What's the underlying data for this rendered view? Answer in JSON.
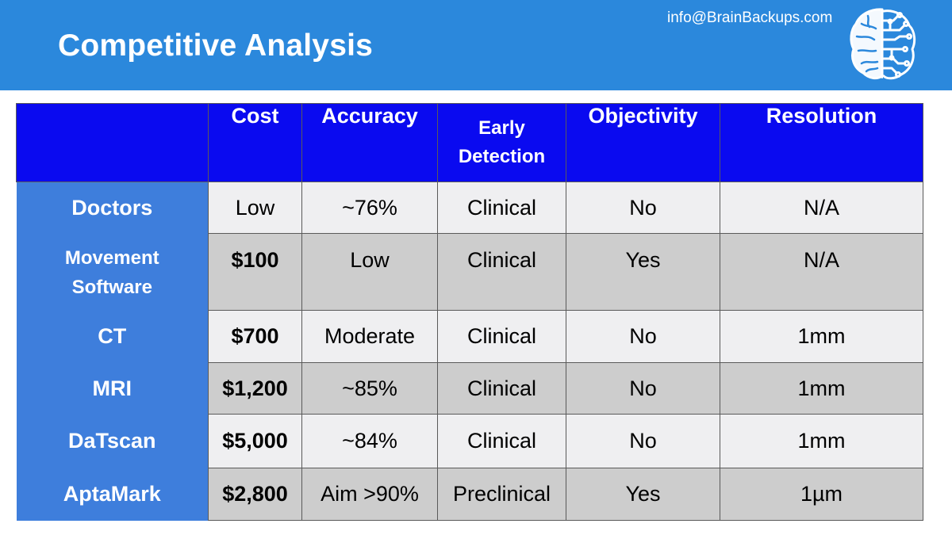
{
  "header": {
    "title": "Competitive Analysis",
    "email": "info@BrainBackups.com",
    "logo_icon": "brain-circuit-icon"
  },
  "table": {
    "columns": [
      "",
      "Cost",
      "Accuracy",
      "Early\nDetection",
      "Objectivity",
      "Resolution"
    ],
    "rows": [
      {
        "name": "Doctors",
        "cells": [
          "Low",
          "~76%",
          "Clinical",
          "No",
          "N/A"
        ]
      },
      {
        "name": "Movement\nSoftware",
        "cells": [
          "$100",
          "Low",
          "Clinical",
          "Yes",
          "N/A"
        ]
      },
      {
        "name": "CT",
        "cells": [
          "$700",
          "Moderate",
          "Clinical",
          "No",
          "1mm"
        ]
      },
      {
        "name": "MRI",
        "cells": [
          "$1,200",
          "~85%",
          "Clinical",
          "No",
          "1mm"
        ]
      },
      {
        "name": "DaTscan",
        "cells": [
          "$5,000",
          "~84%",
          "Clinical",
          "No",
          "1mm"
        ]
      },
      {
        "name": "AptaMark",
        "cells": [
          "$2,800",
          "Aim >90%",
          "Preclinical",
          "Yes",
          "1µm"
        ]
      }
    ]
  },
  "colors": {
    "header_bg": "#2b88dc",
    "column_header_bg": "#0a0af0",
    "row_header_bg": "#3e7edc",
    "row_light": "#efeff1",
    "row_dark": "#cdcdcd"
  }
}
